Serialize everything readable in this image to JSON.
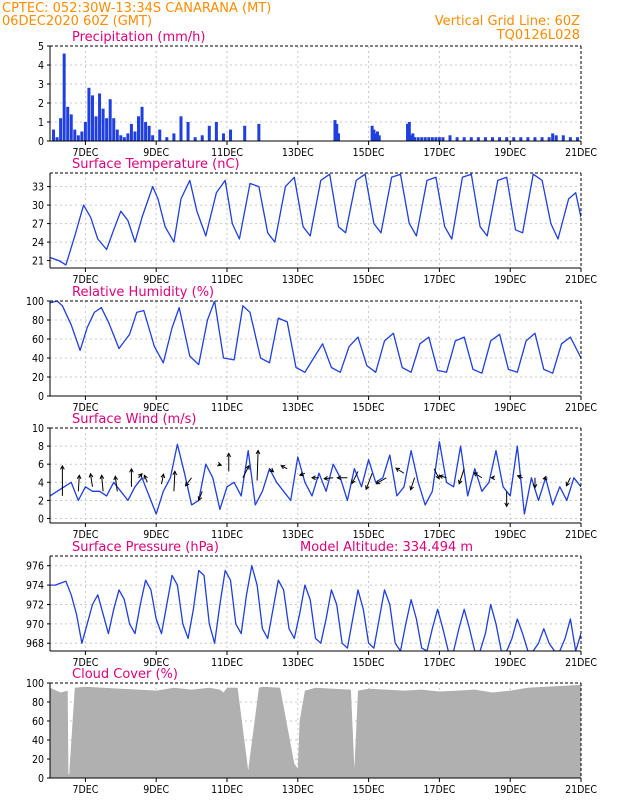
{
  "header": {
    "line1_left": "CPTEC:   052:30W-13:34S   CANARANA (MT)",
    "line2_left": "06DEC2020 60Z (GMT)",
    "line2_right": "Vertical Grid Line: 60Z",
    "line3_right": "TQ0126L028"
  },
  "colors": {
    "header": "#ff8c00",
    "panel_title": "#e0007a",
    "series": "#1f3fe0",
    "cloud_fill": "#b0b0b0",
    "grid": "#c8c8c8",
    "frame": "#000000"
  },
  "x_axis": {
    "tick_labels": [
      "7DEC",
      "9DEC",
      "11DEC",
      "13DEC",
      "15DEC",
      "17DEC",
      "19DEC",
      "21DEC"
    ]
  },
  "chart_data": [
    {
      "id": "precipitation",
      "type": "bar",
      "title": "Precipitation (mm/h)",
      "ylim": [
        0,
        5
      ],
      "yticks": [
        "0",
        "1",
        "2",
        "3",
        "4",
        "5"
      ],
      "grid": true,
      "color": "#1f3fe0",
      "x": [
        6.1,
        6.2,
        6.3,
        6.4,
        6.5,
        6.6,
        6.7,
        6.8,
        6.9,
        7.0,
        7.1,
        7.2,
        7.3,
        7.4,
        7.5,
        7.6,
        7.7,
        7.8,
        7.9,
        8.0,
        8.1,
        8.2,
        8.3,
        8.4,
        8.5,
        8.6,
        8.7,
        8.8,
        8.9,
        9.1,
        9.3,
        9.5,
        9.7,
        9.9,
        10.1,
        10.3,
        10.5,
        10.7,
        10.9,
        11.1,
        11.5,
        11.9,
        14.05,
        14.1,
        14.15,
        15.1,
        15.15,
        15.2,
        15.25,
        15.3,
        16.1,
        16.15,
        16.2,
        16.25,
        16.3,
        16.4,
        16.5,
        16.6,
        16.7,
        16.8,
        16.9,
        17.0,
        17.1,
        17.3,
        17.5,
        17.7,
        17.9,
        18.1,
        18.3,
        18.5,
        18.7,
        18.9,
        19.1,
        19.3,
        19.5,
        19.7,
        19.9,
        20.1,
        20.2,
        20.3,
        20.5,
        20.7,
        20.9
      ],
      "values": [
        0.6,
        0.2,
        1.2,
        4.6,
        1.8,
        1.4,
        0.6,
        0.3,
        0.5,
        1.0,
        2.8,
        2.4,
        1.3,
        2.5,
        1.7,
        1.2,
        2.2,
        1.2,
        0.6,
        0.3,
        0.2,
        0.4,
        0.9,
        0.5,
        1.3,
        1.8,
        1.0,
        0.8,
        0.3,
        0.6,
        0.2,
        0.4,
        1.3,
        1.0,
        0.2,
        0.3,
        0.8,
        1.0,
        0.4,
        0.6,
        0.8,
        0.9,
        1.1,
        0.9,
        0.4,
        0.8,
        0.6,
        0.4,
        0.5,
        0.3,
        0.9,
        1.0,
        0.3,
        0.4,
        0.2,
        0.2,
        0.2,
        0.2,
        0.2,
        0.2,
        0.2,
        0.2,
        0.2,
        0.3,
        0.2,
        0.2,
        0.2,
        0.2,
        0.2,
        0.2,
        0.2,
        0.2,
        0.2,
        0.2,
        0.2,
        0.2,
        0.2,
        0.2,
        0.4,
        0.3,
        0.3,
        0.2,
        0.2
      ]
    },
    {
      "id": "temperature",
      "type": "line",
      "title": "Surface Temperature (nC)",
      "ylim": [
        19.8,
        35.2
      ],
      "yticks": [
        "21",
        "24",
        "27",
        "30",
        "33"
      ],
      "grid": true,
      "color": "#1f3fe0",
      "x": [
        6.0,
        6.25,
        6.45,
        6.7,
        6.95,
        7.15,
        7.35,
        7.6,
        7.8,
        8.0,
        8.2,
        8.4,
        8.6,
        8.9,
        9.05,
        9.25,
        9.5,
        9.7,
        9.95,
        10.15,
        10.4,
        10.7,
        10.95,
        11.15,
        11.35,
        11.65,
        11.9,
        12.15,
        12.35,
        12.65,
        12.9,
        13.15,
        13.35,
        13.65,
        13.9,
        14.15,
        14.35,
        14.65,
        14.9,
        15.15,
        15.35,
        15.65,
        15.9,
        16.15,
        16.35,
        16.65,
        16.9,
        17.15,
        17.35,
        17.65,
        17.9,
        18.15,
        18.35,
        18.65,
        18.9,
        19.15,
        19.35,
        19.65,
        19.9,
        20.15,
        20.35,
        20.65,
        20.85,
        21.0
      ],
      "values": [
        21.5,
        21.0,
        20.3,
        25.0,
        30.0,
        28.0,
        24.5,
        22.8,
        26.0,
        29.0,
        27.5,
        24.0,
        28.0,
        33.0,
        31.0,
        26.5,
        24.0,
        31.0,
        34.0,
        29.0,
        25.0,
        32.0,
        34.0,
        27.0,
        24.5,
        33.5,
        33.0,
        25.5,
        24.0,
        33.0,
        34.5,
        26.5,
        25.0,
        34.0,
        35.0,
        26.5,
        25.5,
        34.0,
        35.0,
        27.0,
        25.5,
        34.5,
        35.0,
        27.0,
        25.0,
        34.0,
        34.5,
        26.5,
        24.5,
        34.5,
        35.0,
        26.5,
        25.0,
        34.0,
        34.5,
        26.0,
        25.5,
        35.0,
        34.0,
        27.0,
        24.5,
        31.0,
        32.0,
        28.0
      ]
    },
    {
      "id": "humidity",
      "type": "line",
      "title": "Relative Humidity (%)",
      "ylim": [
        0,
        100
      ],
      "yticks": [
        "0",
        "20",
        "40",
        "60",
        "80",
        "100"
      ],
      "grid": true,
      "color": "#1f3fe0",
      "x": [
        6.0,
        6.2,
        6.35,
        6.6,
        6.85,
        7.05,
        7.25,
        7.45,
        7.65,
        7.95,
        8.25,
        8.45,
        8.65,
        8.95,
        9.2,
        9.45,
        9.65,
        9.95,
        10.2,
        10.45,
        10.65,
        10.9,
        11.2,
        11.45,
        11.65,
        11.95,
        12.2,
        12.45,
        12.7,
        12.95,
        13.2,
        13.45,
        13.7,
        13.95,
        14.2,
        14.45,
        14.7,
        14.95,
        15.2,
        15.45,
        15.7,
        15.95,
        16.2,
        16.45,
        16.7,
        16.95,
        17.2,
        17.45,
        17.7,
        17.95,
        18.2,
        18.45,
        18.7,
        18.95,
        19.2,
        19.45,
        19.7,
        19.95,
        20.2,
        20.45,
        20.7,
        21.0
      ],
      "values": [
        98,
        100,
        95,
        75,
        48,
        72,
        88,
        93,
        78,
        50,
        65,
        88,
        90,
        52,
        35,
        72,
        93,
        42,
        33,
        80,
        100,
        40,
        38,
        95,
        88,
        40,
        35,
        82,
        78,
        30,
        25,
        40,
        55,
        30,
        25,
        52,
        62,
        32,
        25,
        58,
        66,
        30,
        25,
        55,
        62,
        27,
        25,
        58,
        62,
        28,
        24,
        58,
        65,
        28,
        25,
        58,
        66,
        28,
        24,
        55,
        62,
        40
      ]
    },
    {
      "id": "wind",
      "type": "line",
      "title": "Surface Wind (m/s)",
      "ylim": [
        -0.5,
        10
      ],
      "yticks": [
        "0",
        "2",
        "4",
        "6",
        "8",
        "10"
      ],
      "grid": true,
      "color": "#1f3fe0",
      "x": [
        6.0,
        6.2,
        6.4,
        6.6,
        6.8,
        7.0,
        7.2,
        7.4,
        7.6,
        7.8,
        8.0,
        8.2,
        8.4,
        8.6,
        8.8,
        9.0,
        9.2,
        9.4,
        9.6,
        9.8,
        10.0,
        10.2,
        10.4,
        10.6,
        10.8,
        11.0,
        11.2,
        11.4,
        11.6,
        11.8,
        12.0,
        12.2,
        12.4,
        12.6,
        12.8,
        13.0,
        13.2,
        13.4,
        13.6,
        13.8,
        14.0,
        14.2,
        14.4,
        14.6,
        14.8,
        15.0,
        15.2,
        15.4,
        15.6,
        15.8,
        16.0,
        16.2,
        16.4,
        16.6,
        16.8,
        17.0,
        17.2,
        17.4,
        17.6,
        17.8,
        18.0,
        18.2,
        18.4,
        18.6,
        18.8,
        19.0,
        19.2,
        19.4,
        19.6,
        19.8,
        20.0,
        20.2,
        20.4,
        20.6,
        20.8,
        21.0
      ],
      "values": [
        2.5,
        3.0,
        3.5,
        4.0,
        2.0,
        3.5,
        3.0,
        3.0,
        2.5,
        4.0,
        3.0,
        2.0,
        3.5,
        4.5,
        2.5,
        0.5,
        3.0,
        4.5,
        8.2,
        5.0,
        1.5,
        2.0,
        6.0,
        4.5,
        1.0,
        3.5,
        4.0,
        2.5,
        7.5,
        1.5,
        3.0,
        5.5,
        4.0,
        3.0,
        2.0,
        6.8,
        4.0,
        2.5,
        5.0,
        3.0,
        6.0,
        4.5,
        2.0,
        5.5,
        3.5,
        6.5,
        4.0,
        4.5,
        7.0,
        2.5,
        3.5,
        7.5,
        4.0,
        1.5,
        3.0,
        8.5,
        4.0,
        3.5,
        8.0,
        2.5,
        5.5,
        3.0,
        4.0,
        7.5,
        3.5,
        2.5,
        8.0,
        0.5,
        4.5,
        2.0,
        4.5,
        1.5,
        3.5,
        2.0,
        4.5,
        3.5
      ],
      "arrows": [
        {
          "x": 6.35,
          "y": 2.5,
          "dx": 0.0,
          "dy": 3.0
        },
        {
          "x": 6.8,
          "y": 3.0,
          "dx": 0.1,
          "dy": 1.6
        },
        {
          "x": 7.2,
          "y": 3.5,
          "dx": -0.2,
          "dy": 1.3
        },
        {
          "x": 7.5,
          "y": 3.0,
          "dx": -0.15,
          "dy": 1.6
        },
        {
          "x": 7.9,
          "y": 3.0,
          "dx": -0.2,
          "dy": 1.5
        },
        {
          "x": 8.3,
          "y": 3.5,
          "dx": 0.0,
          "dy": 1.8
        },
        {
          "x": 8.5,
          "y": 4.5,
          "dx": 0.35,
          "dy": 0.4
        },
        {
          "x": 8.75,
          "y": 4.0,
          "dx": -0.3,
          "dy": 0.7
        },
        {
          "x": 9.15,
          "y": 3.8,
          "dx": 0.2,
          "dy": 1.0
        },
        {
          "x": 9.5,
          "y": 3.0,
          "dx": 0.1,
          "dy": 2.0
        },
        {
          "x": 10.0,
          "y": 4.5,
          "dx": -0.6,
          "dy": -0.8
        },
        {
          "x": 10.3,
          "y": 3.0,
          "dx": -0.35,
          "dy": -0.9
        },
        {
          "x": 10.75,
          "y": 6.0,
          "dx": 0.3,
          "dy": -0.1
        },
        {
          "x": 11.05,
          "y": 5.2,
          "dx": 0.0,
          "dy": 1.8
        },
        {
          "x": 11.45,
          "y": 4.5,
          "dx": 0.6,
          "dy": 1.2
        },
        {
          "x": 11.85,
          "y": 4.2,
          "dx": 0.1,
          "dy": 3.0
        },
        {
          "x": 12.2,
          "y": 5.5,
          "dx": 0.4,
          "dy": -0.3
        },
        {
          "x": 12.7,
          "y": 5.5,
          "dx": -0.6,
          "dy": 0.3
        },
        {
          "x": 13.2,
          "y": 5.0,
          "dx": -0.5,
          "dy": -0.2
        },
        {
          "x": 13.6,
          "y": 4.5,
          "dx": -0.7,
          "dy": 0.0
        },
        {
          "x": 14.0,
          "y": 4.5,
          "dx": -0.9,
          "dy": -0.1
        },
        {
          "x": 14.4,
          "y": 4.5,
          "dx": -1.0,
          "dy": 0.0
        },
        {
          "x": 14.7,
          "y": 5.2,
          "dx": -0.6,
          "dy": -1.2
        },
        {
          "x": 15.1,
          "y": 5.0,
          "dx": -0.6,
          "dy": -1.6
        },
        {
          "x": 15.5,
          "y": 4.5,
          "dx": -1.0,
          "dy": -0.6
        },
        {
          "x": 16.0,
          "y": 5.0,
          "dx": -0.8,
          "dy": 0.5
        },
        {
          "x": 16.3,
          "y": 4.5,
          "dx": -0.4,
          "dy": -1.2
        },
        {
          "x": 16.85,
          "y": 5.5,
          "dx": 0.5,
          "dy": -1.0
        },
        {
          "x": 17.2,
          "y": 4.5,
          "dx": -0.7,
          "dy": 0.2
        },
        {
          "x": 17.7,
          "y": 5.5,
          "dx": -0.5,
          "dy": -1.5
        },
        {
          "x": 18.2,
          "y": 4.5,
          "dx": -0.8,
          "dy": 0.5
        },
        {
          "x": 18.55,
          "y": 4.5,
          "dx": -0.3,
          "dy": 0.0
        },
        {
          "x": 18.9,
          "y": 3.0,
          "dx": 0.0,
          "dy": -1.5
        },
        {
          "x": 19.35,
          "y": 4.5,
          "dx": -0.5,
          "dy": 0.2
        },
        {
          "x": 19.7,
          "y": 4.5,
          "dx": 0.0,
          "dy": -1.0
        },
        {
          "x": 20.05,
          "y": 4.5,
          "dx": -0.4,
          "dy": -0.1
        },
        {
          "x": 20.7,
          "y": 4.5,
          "dx": -0.4,
          "dy": -0.8
        }
      ]
    },
    {
      "id": "pressure",
      "type": "line",
      "title": "Surface Pressure (hPa)",
      "annotation": "Model Altitude: 334.494 m",
      "ylim": [
        967.2,
        977
      ],
      "yticks": [
        "968",
        "970",
        "972",
        "974",
        "976"
      ],
      "grid": true,
      "color": "#1f3fe0",
      "x": [
        6.0,
        6.15,
        6.3,
        6.45,
        6.6,
        6.75,
        6.9,
        7.05,
        7.2,
        7.35,
        7.5,
        7.65,
        7.8,
        7.95,
        8.1,
        8.25,
        8.4,
        8.55,
        8.7,
        8.85,
        9.0,
        9.15,
        9.3,
        9.45,
        9.6,
        9.75,
        9.9,
        10.05,
        10.2,
        10.35,
        10.5,
        10.65,
        10.8,
        10.95,
        11.1,
        11.25,
        11.4,
        11.55,
        11.7,
        11.85,
        12.0,
        12.15,
        12.3,
        12.45,
        12.6,
        12.75,
        12.9,
        13.05,
        13.2,
        13.35,
        13.5,
        13.65,
        13.8,
        13.95,
        14.1,
        14.25,
        14.4,
        14.55,
        14.7,
        14.85,
        15.0,
        15.15,
        15.3,
        15.45,
        15.6,
        15.75,
        15.9,
        16.05,
        16.2,
        16.35,
        16.5,
        16.65,
        16.8,
        16.95,
        17.1,
        17.25,
        17.4,
        17.55,
        17.7,
        17.85,
        18.0,
        18.15,
        18.3,
        18.45,
        18.6,
        18.75,
        18.9,
        19.05,
        19.2,
        19.35,
        19.5,
        19.65,
        19.8,
        19.95,
        20.1,
        20.25,
        20.4,
        20.55,
        20.7,
        20.85,
        21.0
      ],
      "values": [
        974.0,
        974.0,
        974.2,
        974.4,
        973.0,
        971.0,
        968.0,
        970.0,
        972.0,
        973.0,
        971.0,
        969.0,
        971.5,
        973.5,
        972.5,
        970.0,
        969.0,
        972.0,
        974.5,
        973.5,
        970.5,
        969.0,
        972.0,
        975.0,
        974.0,
        970.0,
        968.5,
        971.5,
        975.5,
        975.0,
        970.0,
        968.0,
        972.0,
        975.5,
        974.5,
        970.0,
        969.0,
        973.0,
        976.0,
        974.0,
        969.5,
        968.5,
        971.5,
        974.5,
        973.5,
        969.5,
        968.5,
        971.0,
        974.0,
        972.5,
        968.5,
        968.0,
        970.5,
        973.5,
        972.0,
        968.0,
        967.5,
        970.5,
        973.5,
        971.5,
        968.0,
        967.5,
        970.5,
        973.5,
        972.0,
        968.0,
        967.2,
        970.0,
        972.5,
        970.5,
        967.5,
        967.2,
        969.5,
        971.5,
        969.5,
        967.2,
        967.2,
        969.5,
        971.5,
        969.5,
        967.2,
        967.2,
        969.0,
        972.0,
        970.0,
        967.2,
        967.2,
        968.5,
        970.5,
        969.0,
        967.2,
        967.2,
        968.0,
        969.5,
        968.0,
        967.2,
        967.2,
        968.5,
        970.5,
        967.2,
        969.0
      ]
    },
    {
      "id": "cloud",
      "type": "area",
      "title": "Cloud Cover (%)",
      "ylim": [
        0,
        100
      ],
      "yticks": [
        "0",
        "20",
        "40",
        "60",
        "80",
        "100"
      ],
      "grid": true,
      "color": "#b0b0b0",
      "x": [
        6.0,
        6.3,
        6.5,
        6.52,
        6.54,
        6.7,
        7.0,
        7.5,
        8.0,
        8.5,
        9.0,
        9.5,
        10.0,
        10.5,
        10.8,
        10.9,
        11.0,
        11.3,
        11.6,
        11.9,
        12.0,
        12.5,
        12.9,
        13.0,
        13.05,
        13.2,
        13.5,
        14.0,
        14.5,
        14.6,
        14.7,
        15.0,
        15.5,
        16.0,
        16.5,
        17.0,
        17.5,
        18.0,
        18.5,
        19.0,
        19.5,
        20.0,
        20.5,
        21.0
      ],
      "values": [
        95,
        90,
        92,
        5,
        3,
        95,
        96,
        95,
        94,
        93,
        92,
        95,
        93,
        95,
        93,
        90,
        95,
        95,
        8,
        95,
        96,
        95,
        15,
        10,
        60,
        92,
        95,
        94,
        93,
        10,
        92,
        94,
        93,
        92,
        93,
        91,
        92,
        93,
        90,
        92,
        95,
        96,
        97,
        98
      ],
      "dips_note": ""
    }
  ]
}
